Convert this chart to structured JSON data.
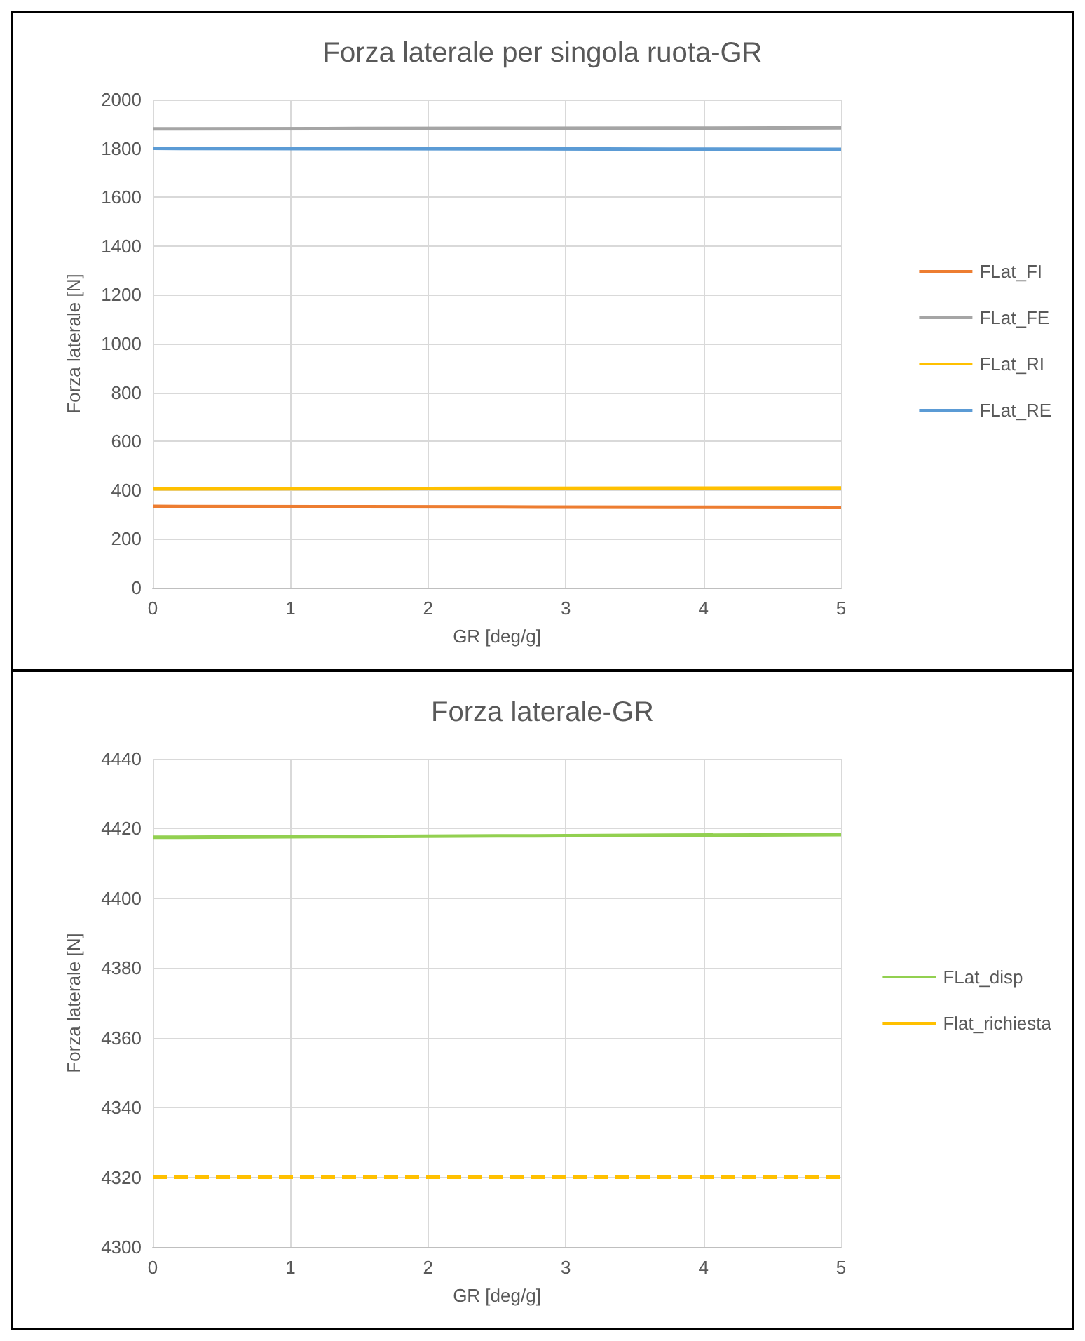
{
  "chart_data": [
    {
      "type": "line",
      "title": "Forza laterale per singola ruota-GR",
      "xlabel": "GR [deg/g]",
      "ylabel": "Forza laterale [N]",
      "x": [
        0,
        1.25,
        2.5,
        3.75,
        5
      ],
      "xlim": [
        0,
        5
      ],
      "xticks": [
        0,
        1,
        2,
        3,
        4,
        5
      ],
      "ylim": [
        0,
        2000
      ],
      "yticks": [
        0,
        200,
        400,
        600,
        800,
        1000,
        1200,
        1400,
        1600,
        1800,
        2000
      ],
      "grid": true,
      "legend": "right",
      "marker": "none",
      "line_style": "solid",
      "series": [
        {
          "name": "FLat_FI",
          "color": "#ed7d31",
          "values": [
            333,
            332,
            331,
            330,
            329
          ]
        },
        {
          "name": "FLat_FE",
          "color": "#a5a5a5",
          "values": [
            1880,
            1881,
            1882,
            1883,
            1884
          ]
        },
        {
          "name": "FLat_RI",
          "color": "#ffc000",
          "values": [
            405,
            406,
            407,
            408,
            409
          ]
        },
        {
          "name": "FLat_RE",
          "color": "#5b9bd5",
          "values": [
            1800,
            1799,
            1798,
            1797,
            1796
          ]
        }
      ]
    },
    {
      "type": "line",
      "title": "Forza laterale-GR",
      "xlabel": "GR [deg/g]",
      "ylabel": "Forza laterale [N]",
      "x": [
        0,
        1.25,
        2.5,
        3.75,
        5
      ],
      "xlim": [
        0,
        5
      ],
      "xticks": [
        0,
        1,
        2,
        3,
        4,
        5
      ],
      "ylim": [
        4300,
        4440
      ],
      "yticks": [
        4300,
        4320,
        4340,
        4360,
        4380,
        4400,
        4420,
        4440
      ],
      "grid": true,
      "legend": "right",
      "marker": "none",
      "series": [
        {
          "name": "FLat_disp",
          "color": "#92d050",
          "values": [
            4417.5,
            4417.7,
            4417.9,
            4418.1,
            4418.3
          ],
          "line_style": "solid"
        },
        {
          "name": "Flat_richiesta",
          "color": "#ffc000",
          "values": [
            4320,
            4320,
            4320,
            4320,
            4320
          ],
          "line_style": "dashed"
        }
      ]
    }
  ]
}
